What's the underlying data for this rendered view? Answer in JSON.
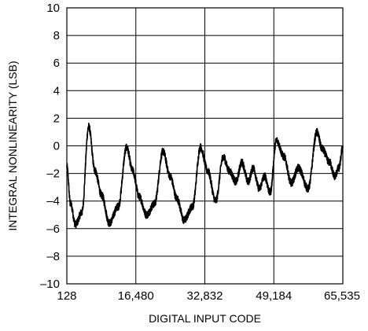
{
  "chart_data": {
    "type": "line",
    "title": "",
    "xlabel": "DIGITAL INPUT CODE",
    "ylabel": "INTEGRAL NONLINEARITY (LSB)",
    "xlim": [
      128,
      65535
    ],
    "ylim": [
      -10,
      10
    ],
    "xticks": [
      128,
      16480,
      32832,
      49184,
      65535
    ],
    "xtick_labels": [
      "128",
      "16,480",
      "32,832",
      "49,184",
      "65,535"
    ],
    "yticks": [
      -10,
      -8,
      -6,
      -4,
      -2,
      0,
      2,
      4,
      6,
      8,
      10
    ],
    "ytick_labels": [
      "–10",
      "–8",
      "–6",
      "–4",
      "–2",
      "0",
      "2",
      "4",
      "6",
      "8",
      "10"
    ],
    "grid": true,
    "line_color": "#000000",
    "series": [
      {
        "x": [
          128,
          1000,
          2200,
          3700,
          5300,
          6800,
          8400,
          10200,
          12300,
          14300,
          15700,
          17300,
          19000,
          20900,
          22900,
          24600,
          26200,
          27900,
          29900,
          31800,
          33500,
          35400,
          37200,
          38600,
          40200,
          41600,
          43100,
          44300,
          45700,
          47000,
          48300,
          49800,
          51600,
          53300,
          55000,
          57300,
          59400,
          60600,
          62400,
          63600,
          64600,
          65535
        ],
        "y": [
          -1.5,
          -4.2,
          -5.7,
          -4.8,
          1.4,
          -1.8,
          -3.6,
          -5.6,
          -4.4,
          -0.1,
          -1.8,
          -3.7,
          -5.0,
          -4.2,
          -0.4,
          -2.2,
          -3.8,
          -5.4,
          -4.4,
          -0.1,
          -1.8,
          -4.0,
          -0.8,
          -1.8,
          -2.6,
          -1.2,
          -2.6,
          -1.6,
          -3.1,
          -2.2,
          -3.4,
          0.4,
          -0.8,
          -2.7,
          -1.6,
          -3.1,
          1.0,
          -0.2,
          -1.2,
          -2.2,
          -1.6,
          -0.1
        ]
      }
    ]
  }
}
